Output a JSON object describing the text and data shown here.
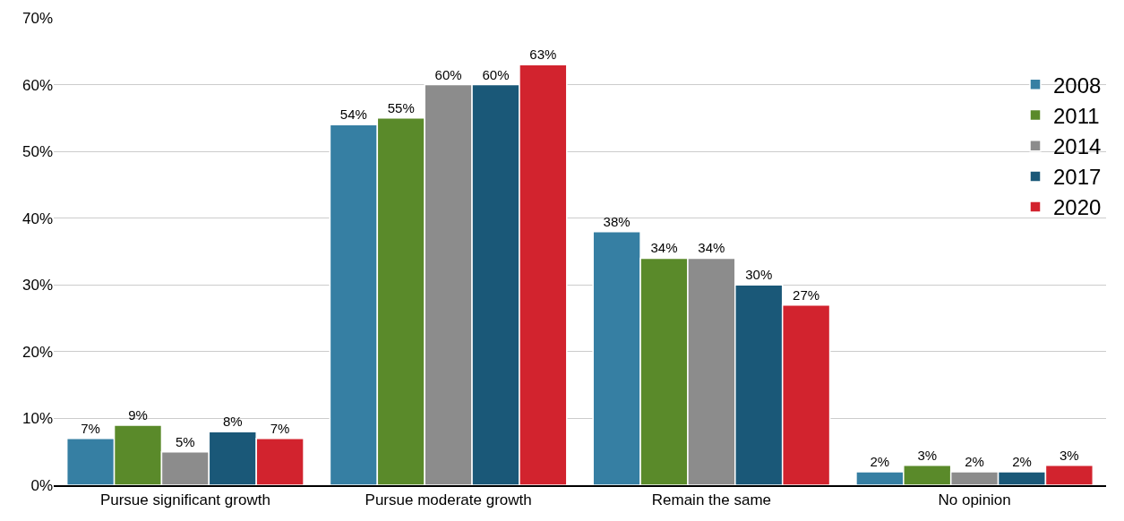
{
  "chart_data": {
    "type": "bar",
    "categories": [
      "Pursue significant growth",
      "Pursue moderate growth",
      "Remain the same",
      "No opinion"
    ],
    "series": [
      {
        "name": "2008",
        "color": "#367fa3",
        "values": [
          7,
          54,
          38,
          2
        ],
        "value_labels": [
          "7%",
          "54%",
          "38%",
          "2%"
        ]
      },
      {
        "name": "2011",
        "color": "#5a8a2a",
        "values": [
          9,
          55,
          34,
          3
        ],
        "value_labels": [
          "9%",
          "55%",
          "34%",
          "3%"
        ]
      },
      {
        "name": "2014",
        "color": "#8c8c8c",
        "values": [
          5,
          60,
          34,
          2
        ],
        "value_labels": [
          "5%",
          "60%",
          "34%",
          "2%"
        ]
      },
      {
        "name": "2017",
        "color": "#1a5878",
        "values": [
          8,
          60,
          30,
          2
        ],
        "value_labels": [
          "8%",
          "60%",
          "30%",
          "2%"
        ]
      },
      {
        "name": "2020",
        "color": "#d2232e",
        "values": [
          7,
          63,
          27,
          3
        ],
        "value_labels": [
          "7%",
          "63%",
          "27%",
          "3%"
        ]
      }
    ],
    "ylim": [
      0,
      70
    ],
    "yticks": [
      {
        "value": 0,
        "label": "0%"
      },
      {
        "value": 10,
        "label": "10%"
      },
      {
        "value": 20,
        "label": "20%"
      },
      {
        "value": 30,
        "label": "30%"
      },
      {
        "value": 40,
        "label": "40%"
      },
      {
        "value": 50,
        "label": "50%"
      },
      {
        "value": 60,
        "label": "60%"
      },
      {
        "value": 70,
        "label": "70%"
      }
    ],
    "grid": "y",
    "legend": "top right"
  }
}
